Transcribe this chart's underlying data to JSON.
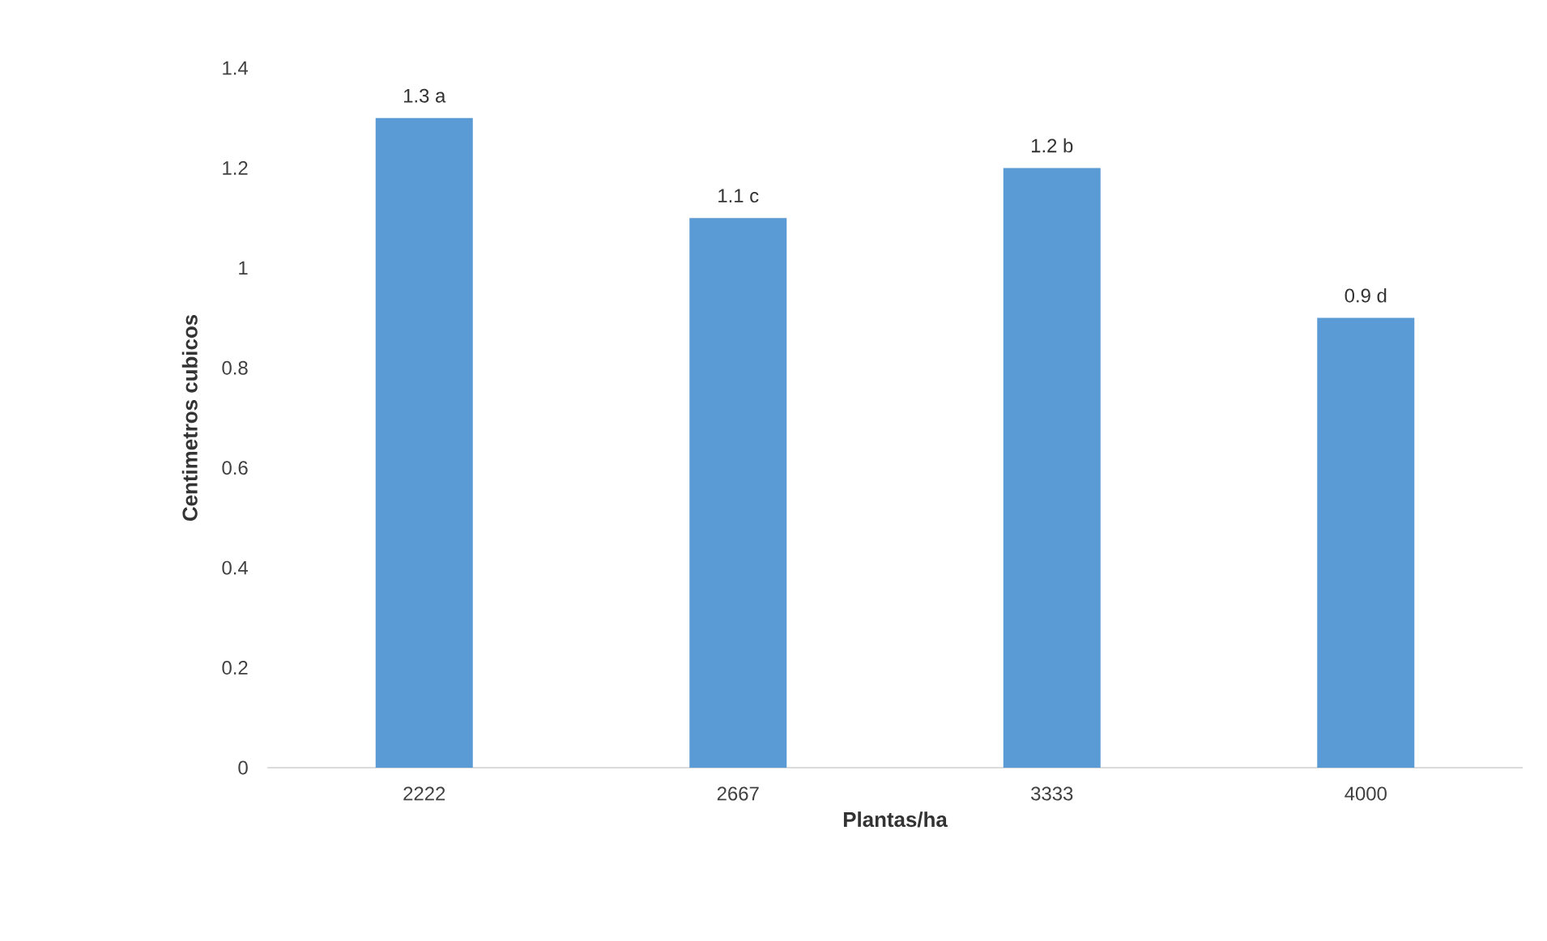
{
  "chart_data": {
    "type": "bar",
    "xlabel": "Plantas/ha",
    "ylabel": "Centimetros cubicos",
    "categories": [
      "2222",
      "2667",
      "3333",
      "4000"
    ],
    "values": [
      1.3,
      1.1,
      1.2,
      0.9
    ],
    "value_labels": [
      "1.3 a",
      "1.1 c",
      "1.2 b",
      "0.9 d"
    ],
    "color": "#5b9bd5",
    "ylim": [
      0,
      1.4
    ],
    "yticks": [
      0,
      0.2,
      0.4,
      0.6,
      0.8,
      1,
      1.2,
      1.4
    ]
  }
}
